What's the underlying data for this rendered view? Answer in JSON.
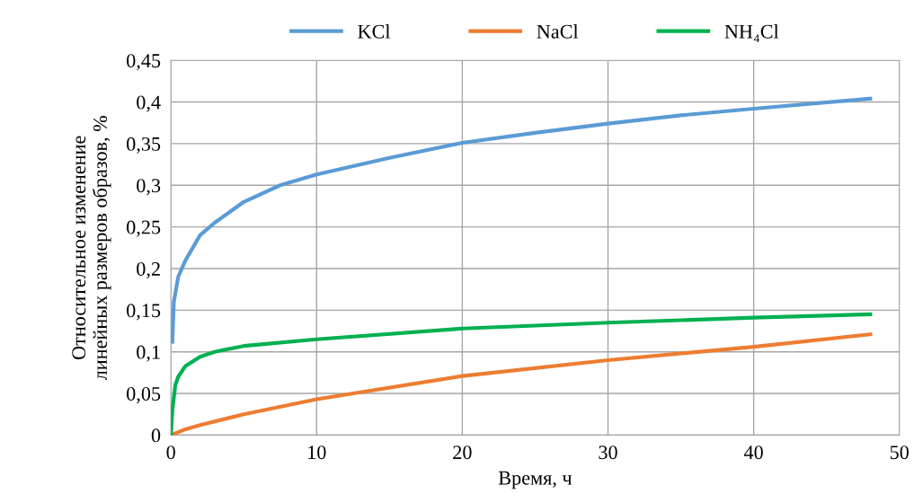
{
  "chart_data": {
    "type": "line",
    "xlabel": "Время, ч",
    "ylabel": "Относительное изменение\nлинейных размеров образов, %",
    "xlim": [
      0,
      50
    ],
    "xticks": [
      0,
      10,
      20,
      30,
      40,
      50
    ],
    "ylim": [
      0,
      0.45
    ],
    "yticks": [
      {
        "value": 0,
        "label": "0"
      },
      {
        "value": 0.05,
        "label": "0,05"
      },
      {
        "value": 0.1,
        "label": "0,1"
      },
      {
        "value": 0.15,
        "label": "0,15"
      },
      {
        "value": 0.2,
        "label": "0,2"
      },
      {
        "value": 0.25,
        "label": "0,25"
      },
      {
        "value": 0.3,
        "label": "0,3"
      },
      {
        "value": 0.35,
        "label": "0,35"
      },
      {
        "value": 0.4,
        "label": "0,4"
      },
      {
        "value": 0.45,
        "label": "0,45"
      }
    ],
    "grid": true,
    "legend": "top",
    "marker": "none",
    "line_style": "solid",
    "series": [
      {
        "name": "KCl",
        "color": "#5b9bd5",
        "x": [
          0.1,
          0.2,
          0.5,
          1,
          2,
          3,
          5,
          7.5,
          10,
          15,
          20,
          25,
          30,
          35,
          40,
          48
        ],
        "values": [
          0.112,
          0.16,
          0.19,
          0.21,
          0.24,
          0.255,
          0.28,
          0.3,
          0.313,
          0.333,
          0.351,
          0.363,
          0.374,
          0.384,
          0.392,
          0.404
        ]
      },
      {
        "name": "NaCl",
        "color": "#ed7d31",
        "x": [
          0,
          1,
          2,
          5,
          10,
          20,
          30,
          40,
          48
        ],
        "values": [
          0,
          0.007,
          0.012,
          0.025,
          0.043,
          0.071,
          0.09,
          0.106,
          0.121
        ]
      },
      {
        "name": "NH₄Cl",
        "color": "#00b050",
        "x": [
          0,
          0.1,
          0.3,
          0.5,
          1,
          2,
          3,
          5,
          10,
          20,
          30,
          40,
          48
        ],
        "values": [
          0,
          0.03,
          0.06,
          0.07,
          0.083,
          0.094,
          0.1,
          0.107,
          0.115,
          0.128,
          0.135,
          0.141,
          0.145
        ]
      }
    ]
  }
}
